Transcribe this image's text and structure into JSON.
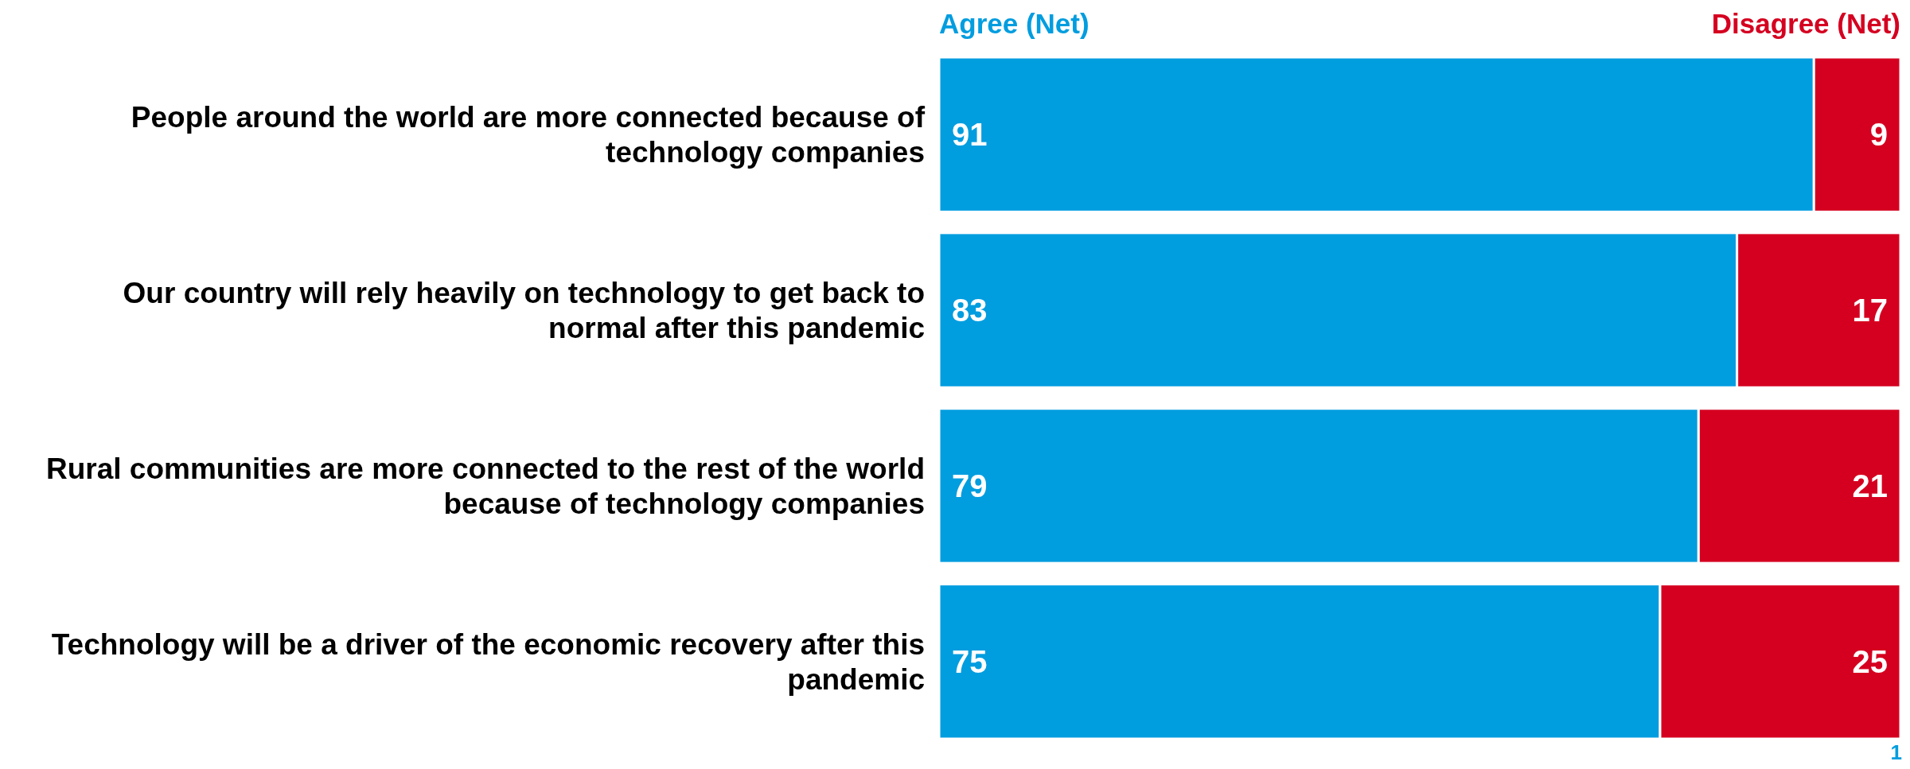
{
  "chart_data": {
    "type": "bar",
    "orientation": "horizontal",
    "stacked": true,
    "categories": [
      "People around the world are more connected because of technology companies",
      "Our country will rely heavily on technology to get back to normal after this pandemic",
      "Rural communities are more connected to the rest of the world because of technology companies",
      "Technology will be a driver of the economic recovery after this pandemic"
    ],
    "series": [
      {
        "name": "Agree (Net)",
        "color": "#009ddf",
        "values": [
          91,
          83,
          79,
          75
        ]
      },
      {
        "name": "Disagree (Net)",
        "color": "#d50020",
        "values": [
          9,
          17,
          21,
          25
        ]
      }
    ],
    "xlim": [
      0,
      100
    ],
    "tick_labels": "y",
    "data_labels": true,
    "legend": "top",
    "grid": false,
    "annotations": [
      "1"
    ]
  }
}
